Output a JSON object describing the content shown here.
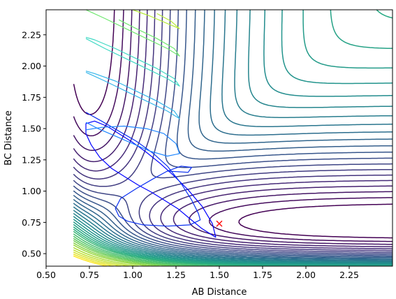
{
  "chart_data": {
    "type": "contour",
    "xlabel": "AB Distance",
    "ylabel": "BC Distance",
    "xlim": [
      0.5,
      2.5
    ],
    "ylim": [
      0.4,
      2.45
    ],
    "x_ticks": [
      0.5,
      0.75,
      1.0,
      1.25,
      1.5,
      1.75,
      2.0,
      2.25
    ],
    "x_tick_labels": [
      "0.50",
      "0.75",
      "1.00",
      "1.25",
      "1.50",
      "1.75",
      "2.00",
      "2.25"
    ],
    "y_ticks": [
      0.5,
      0.75,
      1.0,
      1.25,
      1.5,
      1.75,
      2.0,
      2.25
    ],
    "y_tick_labels": [
      "0.50",
      "0.75",
      "1.00",
      "1.25",
      "1.50",
      "1.75",
      "2.00",
      "2.25"
    ],
    "grid": false,
    "colormap": [
      "#440154",
      "#472c7a",
      "#3b518b",
      "#2c718e",
      "#21908d",
      "#27ad81",
      "#5cc863",
      "#aadc32",
      "#fde725"
    ],
    "contours": {
      "levels": [
        -4.4,
        -4.2,
        -4.0,
        -3.8,
        -3.6,
        -3.4,
        -3.2,
        -3.0,
        -2.8,
        -2.6,
        -2.4,
        -2.2,
        -2.0,
        -1.8,
        -1.6,
        -1.4,
        -1.2,
        -1.0,
        -0.8,
        -0.6,
        -0.4,
        -0.2,
        0.0,
        0.25,
        0.5,
        0.75,
        1.0,
        1.3,
        1.6,
        2.0,
        2.4,
        2.8,
        3.2,
        3.6
      ],
      "surface": "LEPS potential energy surface V(r_AB, r_BC)"
    },
    "trajectories": [
      {
        "color": "#0000ff",
        "points": [
          [
            1.48,
            0.63
          ],
          [
            1.4,
            0.7
          ],
          [
            1.33,
            0.78
          ],
          [
            1.26,
            0.86
          ],
          [
            1.18,
            0.93
          ],
          [
            1.11,
            0.99
          ],
          [
            1.03,
            1.05
          ],
          [
            0.96,
            1.11
          ],
          [
            0.88,
            1.18
          ],
          [
            0.81,
            1.27
          ],
          [
            0.76,
            1.37
          ],
          [
            0.73,
            1.46
          ],
          [
            0.73,
            1.54
          ],
          [
            0.78,
            1.56
          ],
          [
            0.85,
            1.52
          ],
          [
            0.92,
            1.46
          ],
          [
            1.0,
            1.39
          ],
          [
            1.08,
            1.31
          ],
          [
            1.16,
            1.22
          ],
          [
            1.24,
            1.12
          ],
          [
            1.32,
            1.01
          ],
          [
            1.4,
            0.88
          ],
          [
            1.46,
            0.74
          ],
          [
            1.48,
            0.63
          ]
        ]
      },
      {
        "color": "#0a2ff0",
        "points": [
          [
            0.73,
            1.63
          ],
          [
            0.82,
            1.56
          ],
          [
            0.92,
            1.48
          ],
          [
            1.02,
            1.4
          ],
          [
            1.12,
            1.3
          ],
          [
            1.2,
            1.2
          ],
          [
            1.28,
            1.06
          ],
          [
            1.34,
            0.93
          ],
          [
            1.38,
            0.82
          ],
          [
            1.39,
            0.77
          ],
          [
            1.33,
            0.73
          ],
          [
            1.2,
            0.72
          ],
          [
            1.06,
            0.73
          ],
          [
            0.97,
            0.76
          ],
          [
            0.92,
            0.8
          ],
          [
            0.9,
            0.86
          ],
          [
            0.93,
            0.94
          ],
          [
            1.02,
            1.02
          ],
          [
            1.12,
            1.1
          ],
          [
            1.2,
            1.16
          ],
          [
            1.28,
            1.2
          ],
          [
            1.34,
            1.19
          ],
          [
            1.32,
            1.15
          ],
          [
            1.2,
            1.16
          ]
        ]
      },
      {
        "color": "#1f86ff",
        "points": [
          [
            0.73,
            1.55
          ],
          [
            0.8,
            1.5
          ],
          [
            0.9,
            1.44
          ],
          [
            1.0,
            1.38
          ],
          [
            1.1,
            1.32
          ],
          [
            1.2,
            1.28
          ],
          [
            1.27,
            1.3
          ],
          [
            1.25,
            1.38
          ],
          [
            1.18,
            1.46
          ],
          [
            1.08,
            1.5
          ],
          [
            0.95,
            1.52
          ],
          [
            0.82,
            1.51
          ],
          [
            0.73,
            1.49
          ]
        ]
      },
      {
        "color": "#36b6ea",
        "points": [
          [
            0.73,
            1.95
          ],
          [
            0.84,
            1.88
          ],
          [
            0.96,
            1.8
          ],
          [
            1.08,
            1.72
          ],
          [
            1.2,
            1.64
          ],
          [
            1.27,
            1.58
          ],
          [
            1.24,
            1.64
          ],
          [
            1.14,
            1.72
          ],
          [
            1.02,
            1.8
          ],
          [
            0.9,
            1.88
          ],
          [
            0.78,
            1.94
          ],
          [
            0.73,
            1.96
          ]
        ]
      },
      {
        "color": "#3fd9c4",
        "points": [
          [
            0.73,
            2.22
          ],
          [
            0.84,
            2.14
          ],
          [
            0.96,
            2.06
          ],
          [
            1.08,
            1.98
          ],
          [
            1.2,
            1.9
          ],
          [
            1.27,
            1.84
          ],
          [
            1.24,
            1.9
          ],
          [
            1.14,
            1.98
          ],
          [
            1.02,
            2.06
          ],
          [
            0.9,
            2.14
          ],
          [
            0.78,
            2.21
          ],
          [
            0.73,
            2.23
          ]
        ]
      },
      {
        "color": "#70e870",
        "points": [
          [
            0.73,
            2.45
          ],
          [
            0.84,
            2.38
          ],
          [
            0.96,
            2.3
          ],
          [
            1.08,
            2.22
          ],
          [
            1.2,
            2.14
          ],
          [
            1.27,
            2.08
          ],
          [
            1.24,
            2.14
          ],
          [
            1.14,
            2.22
          ],
          [
            1.02,
            2.3
          ],
          [
            0.92,
            2.37
          ]
        ]
      },
      {
        "color": "#b7ea3a",
        "points": [
          [
            1.0,
            2.45
          ],
          [
            1.1,
            2.4
          ],
          [
            1.2,
            2.34
          ],
          [
            1.27,
            2.3
          ],
          [
            1.22,
            2.36
          ],
          [
            1.14,
            2.42
          ]
        ]
      }
    ],
    "markers": [
      {
        "x": 1.5,
        "y": 0.74,
        "symbol": "x",
        "color": "#ff0000"
      }
    ]
  }
}
